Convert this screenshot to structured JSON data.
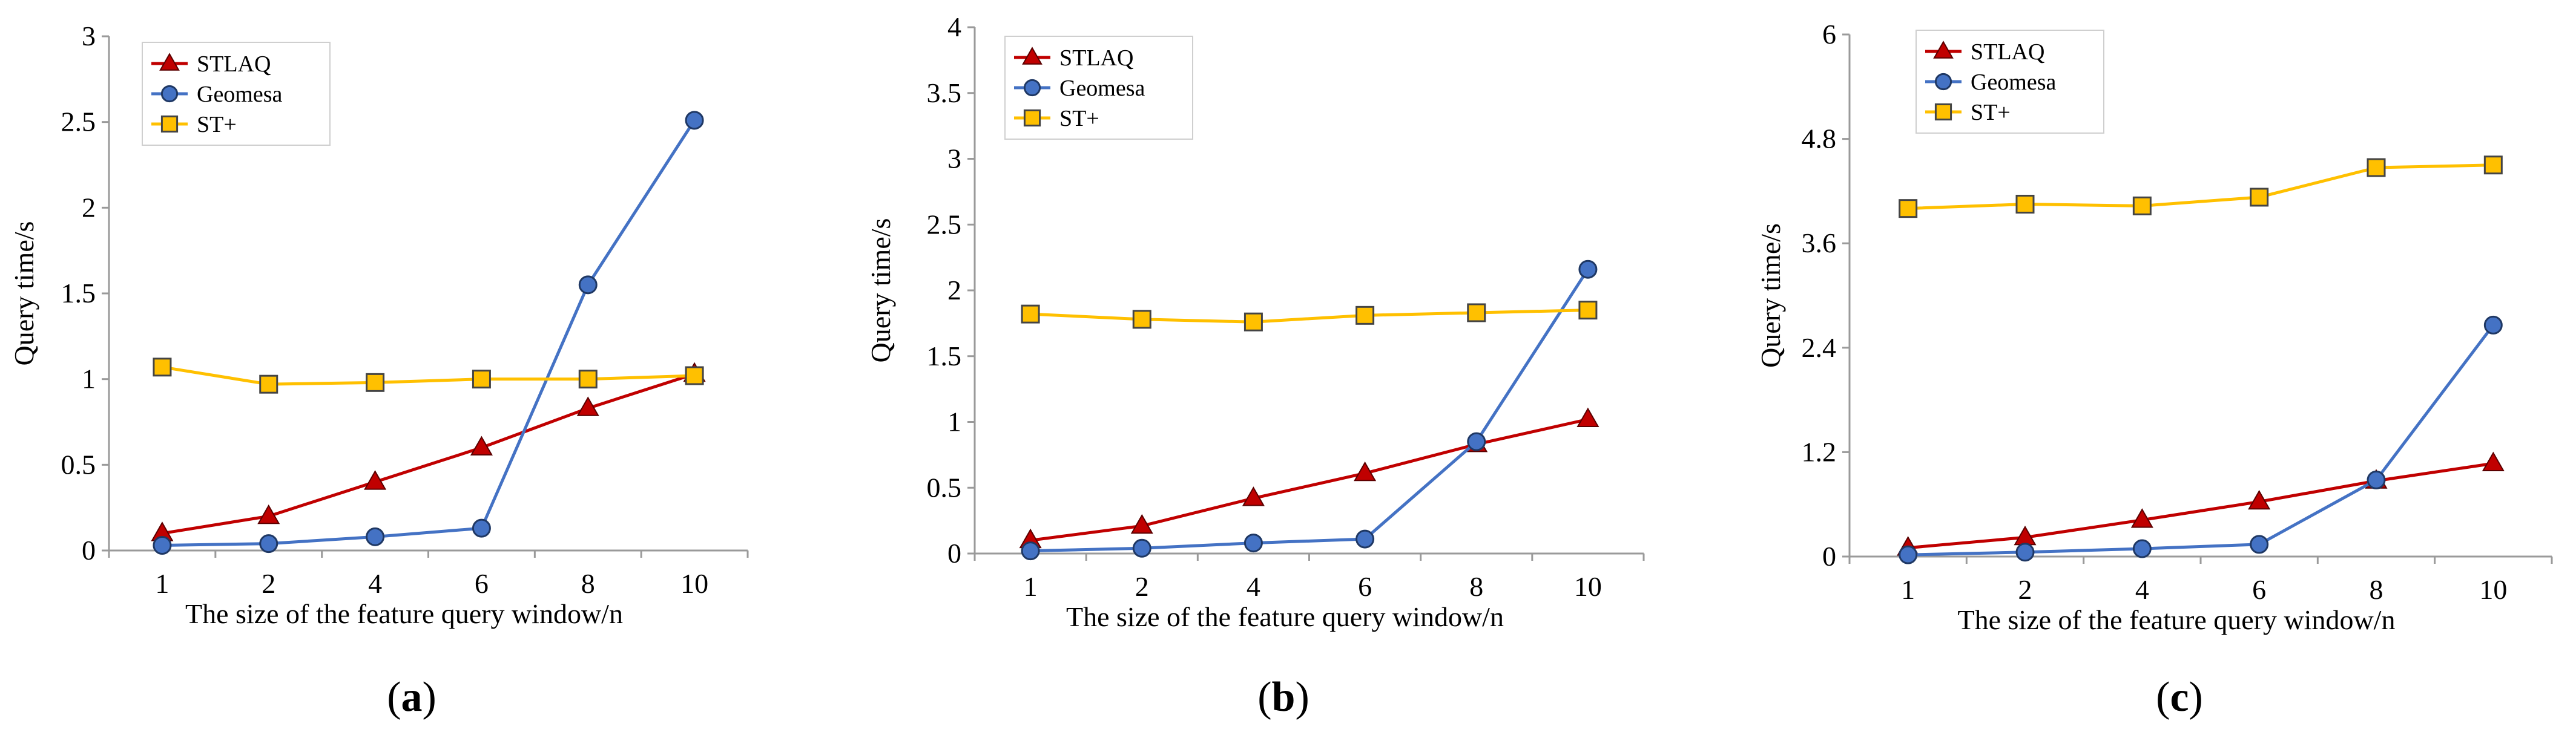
{
  "chart_data": [
    {
      "type": "line",
      "panel_label_open": "(",
      "panel_label_letter": "a",
      "panel_label_close": ")",
      "xlabel": "The size of the feature query window/n",
      "ylabel": "Query time/s",
      "categories": [
        "1",
        "2",
        "4",
        "6",
        "8",
        "10"
      ],
      "ylim": [
        0,
        3
      ],
      "yticks": [
        0,
        0.5,
        1,
        1.5,
        2,
        2.5,
        3
      ],
      "ytick_labels": [
        "0",
        "0.5",
        "1",
        "1.5",
        "2",
        "2.5",
        "3"
      ],
      "legend_position": "top-left",
      "series": [
        {
          "name": "STLAQ",
          "marker": "triangle",
          "color": "#c00000",
          "line_color": "#c00000",
          "values": [
            0.1,
            0.2,
            0.4,
            0.6,
            0.83,
            1.03
          ]
        },
        {
          "name": "Geomesa",
          "marker": "circle",
          "color": "#4472c4",
          "line_color": "#4472c4",
          "values": [
            0.03,
            0.04,
            0.08,
            0.13,
            1.55,
            2.51
          ]
        },
        {
          "name": "ST+",
          "marker": "square",
          "color": "#ffc000",
          "line_color": "#ffc000",
          "values": [
            1.07,
            0.97,
            0.98,
            1.0,
            1.0,
            1.02
          ]
        }
      ]
    },
    {
      "type": "line",
      "panel_label_open": "(",
      "panel_label_letter": "b",
      "panel_label_close": ")",
      "xlabel": "The size of the feature query window/n",
      "ylabel": "Query time/s",
      "categories": [
        "1",
        "2",
        "4",
        "6",
        "8",
        "10"
      ],
      "ylim": [
        0,
        4
      ],
      "yticks": [
        0,
        0.5,
        1,
        1.5,
        2,
        2.5,
        3,
        3.5,
        4
      ],
      "ytick_labels": [
        "0",
        "0.5",
        "1",
        "1.5",
        "2",
        "2.5",
        "3",
        "3.5",
        "4"
      ],
      "legend_position": "top-left",
      "series": [
        {
          "name": "STLAQ",
          "marker": "triangle",
          "color": "#c00000",
          "line_color": "#c00000",
          "values": [
            0.1,
            0.21,
            0.42,
            0.61,
            0.83,
            1.02
          ]
        },
        {
          "name": "Geomesa",
          "marker": "circle",
          "color": "#4472c4",
          "line_color": "#4472c4",
          "values": [
            0.02,
            0.04,
            0.08,
            0.11,
            0.85,
            2.16
          ]
        },
        {
          "name": "ST+",
          "marker": "square",
          "color": "#ffc000",
          "line_color": "#ffc000",
          "values": [
            1.82,
            1.78,
            1.76,
            1.81,
            1.83,
            1.85
          ]
        }
      ]
    },
    {
      "type": "line",
      "panel_label_open": "(",
      "panel_label_letter": "c",
      "panel_label_close": ")",
      "xlabel": "The size of the feature query window/n",
      "ylabel": "Query time/s",
      "categories": [
        "1",
        "2",
        "4",
        "6",
        "8",
        "10"
      ],
      "ylim": [
        0,
        6
      ],
      "yticks": [
        0,
        1.2,
        2.4,
        3.6,
        4.8,
        6
      ],
      "ytick_labels": [
        "0",
        "1.2",
        "2.4",
        "3.6",
        "4.8",
        "6"
      ],
      "legend_position": "top-left",
      "series": [
        {
          "name": "STLAQ",
          "marker": "triangle",
          "color": "#c00000",
          "line_color": "#c00000",
          "values": [
            0.1,
            0.22,
            0.42,
            0.63,
            0.87,
            1.07
          ]
        },
        {
          "name": "Geomesa",
          "marker": "circle",
          "color": "#4472c4",
          "line_color": "#4472c4",
          "values": [
            0.02,
            0.05,
            0.09,
            0.14,
            0.88,
            2.66
          ]
        },
        {
          "name": "ST+",
          "marker": "square",
          "color": "#ffc000",
          "line_color": "#ffc000",
          "values": [
            4.0,
            4.05,
            4.03,
            4.13,
            4.47,
            4.5
          ]
        }
      ]
    }
  ]
}
